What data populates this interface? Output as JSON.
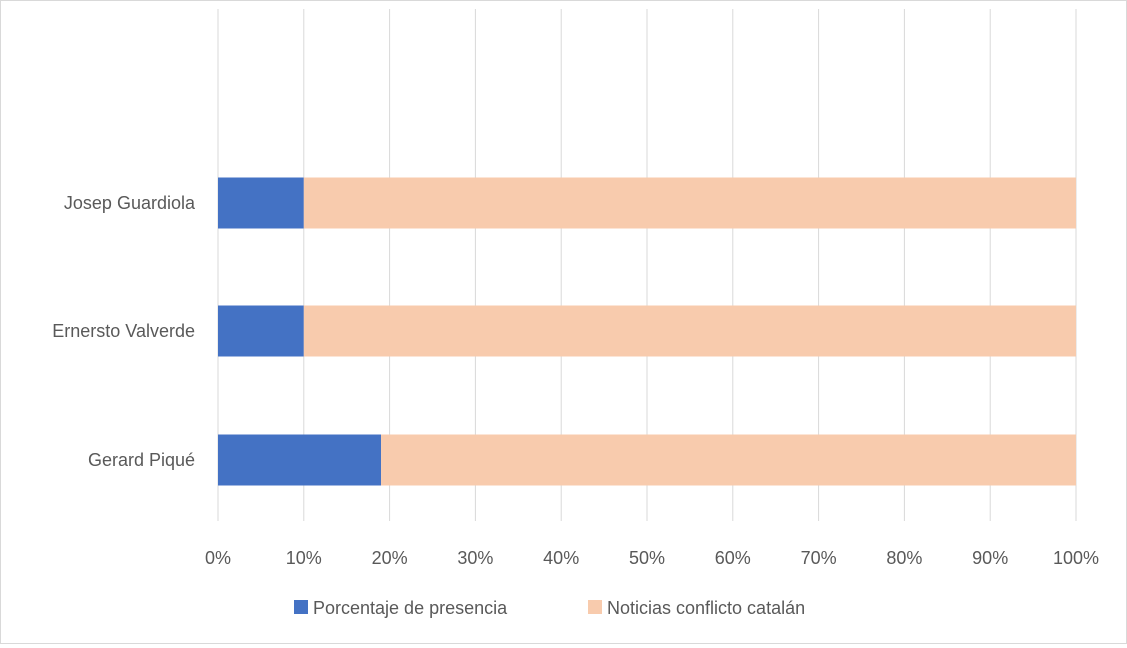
{
  "chart_data": {
    "type": "bar",
    "orientation": "horizontal",
    "stacked": "percent",
    "categories": [
      "Gerard Piqué",
      "Ernersto Valverde",
      "Josep Guardiola"
    ],
    "series": [
      {
        "name": "Porcentaje de presencia",
        "values": [
          19,
          10,
          10
        ],
        "color": "#4472c4"
      },
      {
        "name": "Noticias conflicto catalán",
        "values": [
          81,
          90,
          90
        ],
        "color": "#f8cbad"
      }
    ],
    "xticks": [
      "0%",
      "10%",
      "20%",
      "30%",
      "40%",
      "50%",
      "60%",
      "70%",
      "80%",
      "90%",
      "100%"
    ],
    "xlim": [
      0,
      100
    ],
    "grid": true,
    "legend_position": "bottom",
    "title": "",
    "xlabel": "",
    "ylabel": ""
  }
}
